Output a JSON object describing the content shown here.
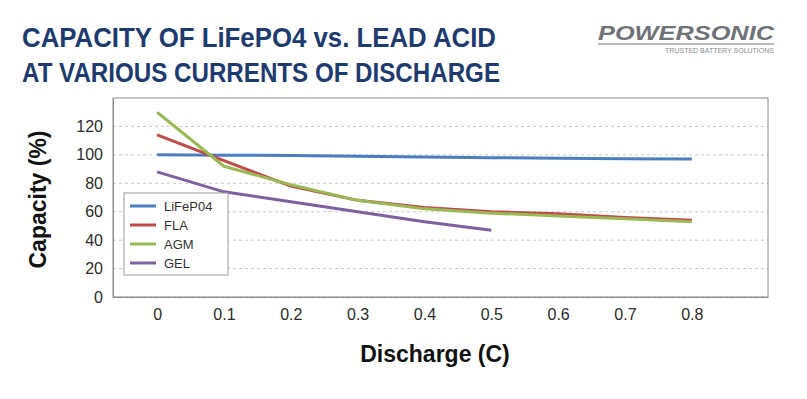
{
  "chart_data": {
    "type": "line",
    "title": "CAPACITY OF LiFePO4 vs. LEAD ACID\nAT VARIOUS CURRENTS OF DISCHARGE",
    "logo": "POWERSONIC",
    "logo_tagline": "TRUSTED BATTERY SOLUTIONS",
    "x_label": "Discharge (C)",
    "y_label": "Capacity (%)",
    "x": [
      0,
      0.1,
      0.2,
      0.3,
      0.4,
      0.5,
      0.6,
      0.7,
      0.8
    ],
    "series": [
      {
        "name": "LiFeP04",
        "color": "#4a7ebf",
        "values": [
          100,
          99.8,
          99.5,
          99,
          98.5,
          98,
          97.7,
          97.3,
          97
        ]
      },
      {
        "name": "FLA",
        "color": "#be4b48",
        "values": [
          114,
          96,
          78,
          68,
          63,
          60,
          58.5,
          56,
          54
        ]
      },
      {
        "name": "AGM",
        "color": "#98b954",
        "values": [
          130,
          92,
          79,
          68,
          62,
          59,
          57,
          55,
          53
        ]
      },
      {
        "name": "GEL",
        "color": "#7d60a0",
        "values": [
          88,
          74,
          67,
          60,
          53,
          47,
          null,
          null,
          null
        ]
      }
    ],
    "xlim": [
      -0.066,
      0.914
    ],
    "xticks": [
      0,
      0.1,
      0.2,
      0.3,
      0.4,
      0.5,
      0.6,
      0.7,
      0.8
    ],
    "ylim": [
      0,
      140
    ],
    "yticks": [
      0,
      20,
      40,
      60,
      80,
      100,
      120
    ],
    "grid": true,
    "legend": "lower left"
  }
}
